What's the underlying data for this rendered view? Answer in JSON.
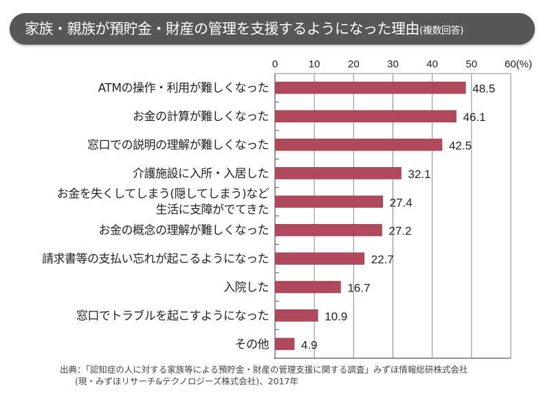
{
  "title": {
    "main": "家族・親族が預貯金・財産の管理を支援するようになった理由",
    "sub": "(複数回答)"
  },
  "colors": {
    "bar": "#b0495b",
    "title_bg": "#575757",
    "grid": "#888888"
  },
  "chart_data": {
    "type": "bar",
    "orientation": "horizontal",
    "title": "家族・親族が預貯金・財産の管理を支援するようになった理由(複数回答)",
    "categories": [
      [
        "ATMの操作・利用が難しくなった"
      ],
      [
        "お金の計算が難しくなった"
      ],
      [
        "窓口での説明の理解が難しくなった"
      ],
      [
        "介護施設に入所・入居した"
      ],
      [
        "お金を失くしてしまう(隠してしまう)など",
        "生活に支障がでてきた"
      ],
      [
        "お金の概念の理解が難しくなった"
      ],
      [
        "請求書等の支払い忘れが起こるようになった"
      ],
      [
        "入院した"
      ],
      [
        "窓口でトラブルを起こすようになった"
      ],
      [
        "その他"
      ]
    ],
    "values": [
      48.5,
      46.1,
      42.5,
      32.1,
      27.4,
      27.2,
      22.7,
      16.7,
      10.9,
      4.9
    ],
    "value_labels": [
      "48.5",
      "46.1",
      "42.5",
      "32.1",
      "27.4",
      "27.2",
      "22.7",
      "16.7",
      "10.9",
      "4.9"
    ],
    "xlim": [
      0,
      60
    ],
    "x_ticks": [
      "0",
      "10",
      "20",
      "30",
      "40",
      "50",
      "60(%)"
    ],
    "xlabel": "",
    "ylabel": "",
    "grid": true
  },
  "source": {
    "line1": "出典：「認知症の人に対する家族等による預貯金・財産の管理支援に関する調査」みずほ情報総研株式会社",
    "line2": "(現・みずほリサーチ&テクノロジーズ株式会社)、2017年"
  }
}
